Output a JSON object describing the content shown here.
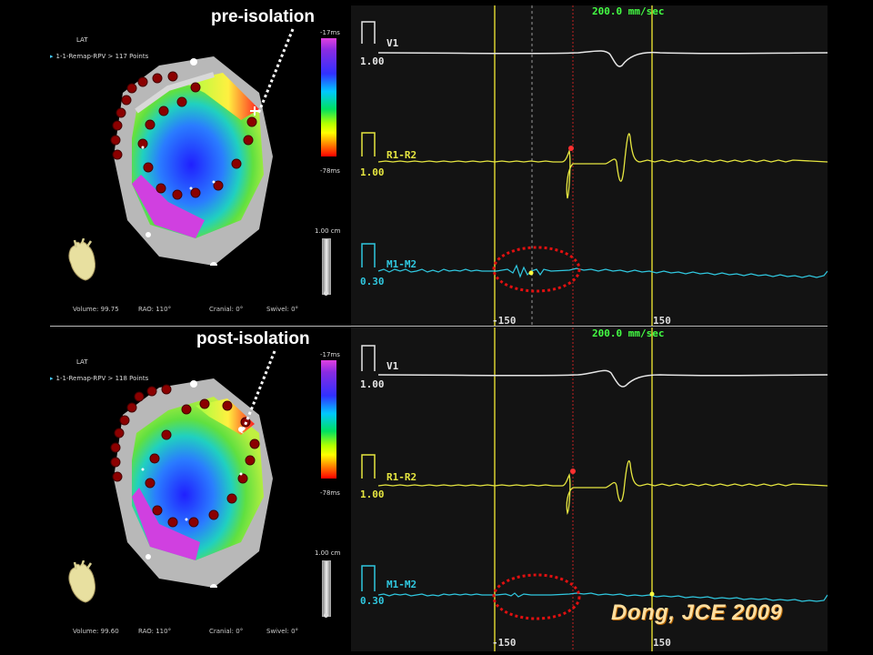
{
  "panels": [
    {
      "id": "pre",
      "title": "pre-isolation",
      "map": {
        "lat_label": "LAT",
        "remap_label": "1-1-Remap-RPV > 117 Points",
        "scale_top": "-17ms",
        "scale_bottom": "-78ms",
        "scale_cm": "1.00 cm",
        "footer": {
          "volume": "Volume:  99.75",
          "rao": "RAO: 110°",
          "cranial": "Cranial: 0°",
          "swivel": "Swivel: 0°"
        }
      },
      "egm": {
        "speed": "200.0 mm/sec",
        "channels": [
          {
            "label": "V1",
            "gain": "1.00",
            "color": "#e6e6e6"
          },
          {
            "label": "R1-R2",
            "gain": "1.00",
            "color": "#e6e640"
          },
          {
            "label": "M1-M2",
            "gain": "0.30",
            "color": "#30c8e0"
          }
        ],
        "window_start_label": "-150",
        "window_end_label": "150"
      }
    },
    {
      "id": "post",
      "title": "post-isolation",
      "map": {
        "lat_label": "LAT",
        "remap_label": "1-1-Remap-RPV > 118 Points",
        "scale_top": "-17ms",
        "scale_bottom": "-78ms",
        "scale_cm": "1.00 cm",
        "footer": {
          "volume": "Volume:  99.60",
          "rao": "RAO: 110°",
          "cranial": "Cranial: 0°",
          "swivel": "Swivel: 0°"
        }
      },
      "egm": {
        "speed": "200.0 mm/sec",
        "channels": [
          {
            "label": "V1",
            "gain": "1.00",
            "color": "#e6e6e6"
          },
          {
            "label": "R1-R2",
            "gain": "1.00",
            "color": "#e6e640"
          },
          {
            "label": "M1-M2",
            "gain": "0.30",
            "color": "#30c8e0"
          }
        ],
        "window_start_label": "-150",
        "window_end_label": "150"
      }
    }
  ],
  "citation": "Dong,  JCE  2009",
  "colors": {
    "window_line": "#d8d030",
    "annotation_circle": "#e01010",
    "ablation_point": "#8b0000",
    "speed_text": "#44ff44"
  }
}
